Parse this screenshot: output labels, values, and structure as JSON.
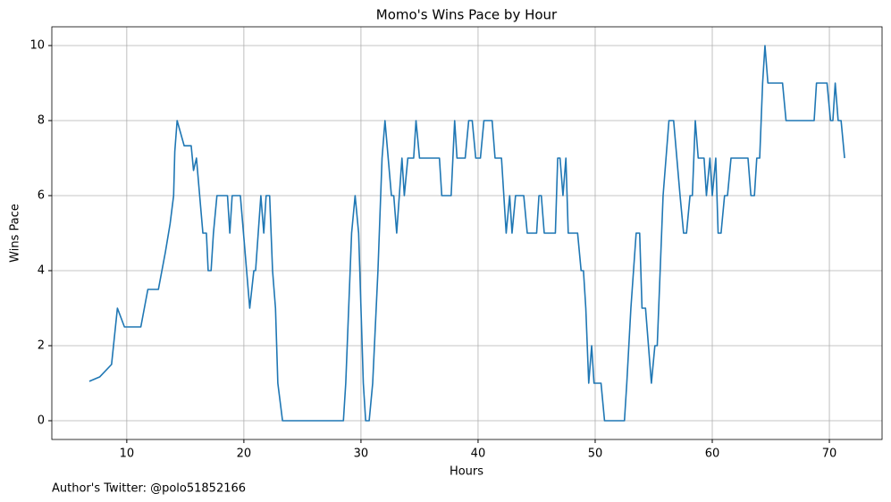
{
  "chart_data": {
    "type": "line",
    "title": "Momo's Wins Pace by Hour",
    "x_label": "Hours",
    "y_label": "Wins Pace",
    "annotation": "Author's Twitter: @polo51852166",
    "color": "#1f77b4",
    "grid": true,
    "xlim": [
      3.6,
      74.5
    ],
    "ylim": [
      -0.5,
      10.5
    ],
    "xticks": [
      10,
      20,
      30,
      40,
      50,
      60,
      70
    ],
    "yticks": [
      0,
      2,
      4,
      6,
      8,
      10
    ],
    "x": [
      6.8,
      7.7,
      8.7,
      9.2,
      9.8,
      11.2,
      11.8,
      12.7,
      13.3,
      13.7,
      14.0,
      14.1,
      14.3,
      14.9,
      15.5,
      15.7,
      15.95,
      16.5,
      16.8,
      16.95,
      17.2,
      17.4,
      17.7,
      18.6,
      18.8,
      19.0,
      19.7,
      20.5,
      20.85,
      21.0,
      21.45,
      21.7,
      21.9,
      22.2,
      22.45,
      22.7,
      22.9,
      23.3,
      28.5,
      28.7,
      29.2,
      29.5,
      29.8,
      30.2,
      30.4,
      30.7,
      31.0,
      31.45,
      31.8,
      32.05,
      32.6,
      32.8,
      33.05,
      33.5,
      33.7,
      34.0,
      34.5,
      34.7,
      35.0,
      36.7,
      36.9,
      37.7,
      38.0,
      38.2,
      38.9,
      39.2,
      39.5,
      39.8,
      40.2,
      40.5,
      41.2,
      41.45,
      42.0,
      42.4,
      42.7,
      42.9,
      43.2,
      43.9,
      44.2,
      45.0,
      45.2,
      45.4,
      45.65,
      46.6,
      46.8,
      47.0,
      47.25,
      47.5,
      47.7,
      48.5,
      48.8,
      49.0,
      49.2,
      49.45,
      49.7,
      49.9,
      50.5,
      50.8,
      52.5,
      52.7,
      53.05,
      53.5,
      53.8,
      54.0,
      54.3,
      54.8,
      55.1,
      55.3,
      55.8,
      56.3,
      56.7,
      57.25,
      57.55,
      57.8,
      58.1,
      58.3,
      58.55,
      58.8,
      59.3,
      59.5,
      59.8,
      60.0,
      60.3,
      60.5,
      60.75,
      61.05,
      61.3,
      61.6,
      63.05,
      63.3,
      63.6,
      63.8,
      64.05,
      64.3,
      64.5,
      64.75,
      66.0,
      66.3,
      68.7,
      68.9,
      69.8,
      70.1,
      70.3,
      70.5,
      70.75,
      71.0,
      71.3
    ],
    "values": [
      1.05,
      1.17,
      1.5,
      3,
      2.5,
      2.5,
      3.5,
      3.5,
      4.5,
      5.25,
      6,
      7.17,
      8,
      7.33,
      7.33,
      6.67,
      7,
      5,
      5,
      4,
      4,
      5,
      6,
      6,
      5,
      6,
      6,
      3,
      4,
      4,
      6,
      5,
      6,
      6,
      4,
      3,
      1,
      0,
      0,
      1,
      5,
      6,
      5,
      1,
      0,
      0,
      1,
      4,
      7,
      8,
      6,
      6,
      5,
      7,
      6,
      7,
      7,
      8,
      7,
      7,
      6,
      6,
      8,
      7,
      7,
      8,
      8,
      7,
      7,
      8,
      8,
      7,
      7,
      5,
      6,
      5,
      6,
      6,
      5,
      5,
      6,
      6,
      5,
      5,
      7,
      7,
      6,
      7,
      5,
      5,
      4,
      4,
      3,
      1,
      2,
      1,
      1,
      0,
      0,
      1,
      3,
      5,
      5,
      3,
      3,
      1,
      2,
      2,
      6,
      8,
      8,
      6,
      5,
      5,
      6,
      6,
      8,
      7,
      7,
      6,
      7,
      6,
      7,
      5,
      5,
      6,
      6,
      7,
      7,
      6,
      6,
      7,
      7,
      9,
      10,
      9,
      9,
      8,
      8,
      9,
      9,
      8,
      8,
      9,
      8,
      8,
      7
    ]
  }
}
